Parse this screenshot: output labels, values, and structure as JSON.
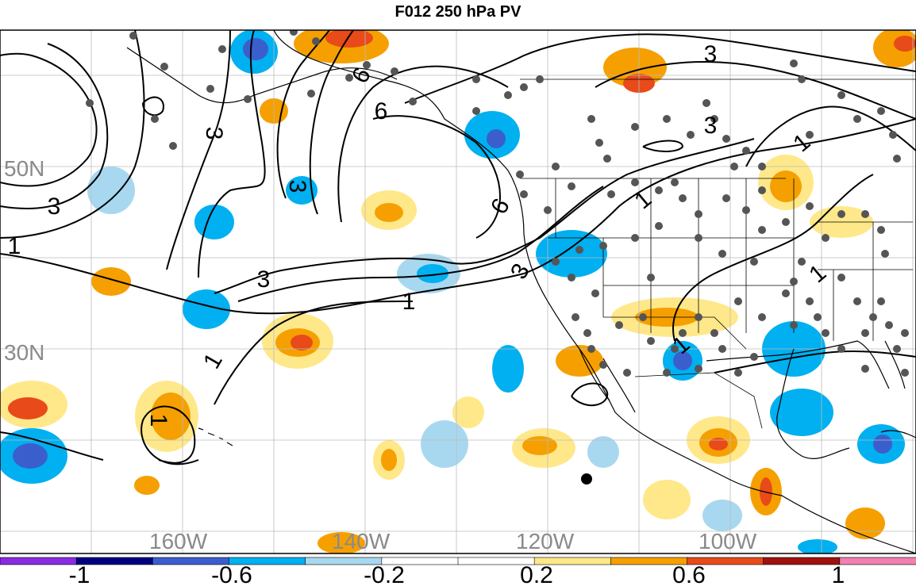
{
  "title": "F012 250 hPa PV",
  "lat_labels": [
    "50N",
    "30N"
  ],
  "lon_labels": [
    "160W",
    "140W",
    "120W",
    "100W"
  ],
  "contour_labels": [
    "3",
    "3",
    "3",
    "1",
    "3",
    "6",
    "6",
    "1",
    "1",
    "6",
    "3",
    "1",
    "3",
    "3",
    "1",
    "1",
    "1",
    "1"
  ],
  "colorbar": {
    "labels": [
      "-1",
      "-0.6",
      "-0.2",
      "0.2",
      "0.6",
      "1"
    ],
    "colors": [
      "#8a2be2",
      "#000080",
      "#3a5fcd",
      "#00b0f0",
      "#a8d8f0",
      "#ffffff",
      "#ffffff",
      "#ffe88a",
      "#f5a000",
      "#e84a1a",
      "#a01010",
      "#f080b0"
    ]
  },
  "colors": {
    "neg_strong": "#3a5fcd",
    "neg_mid": "#00b0f0",
    "neg_light": "#a8d8f0",
    "pos_light": "#ffe88a",
    "pos_mid": "#f5a000",
    "pos_strong": "#e84a1a",
    "station_dot": "#555555",
    "contour": "#000000",
    "grid": "#bbbbbb",
    "coast": "#000000"
  }
}
